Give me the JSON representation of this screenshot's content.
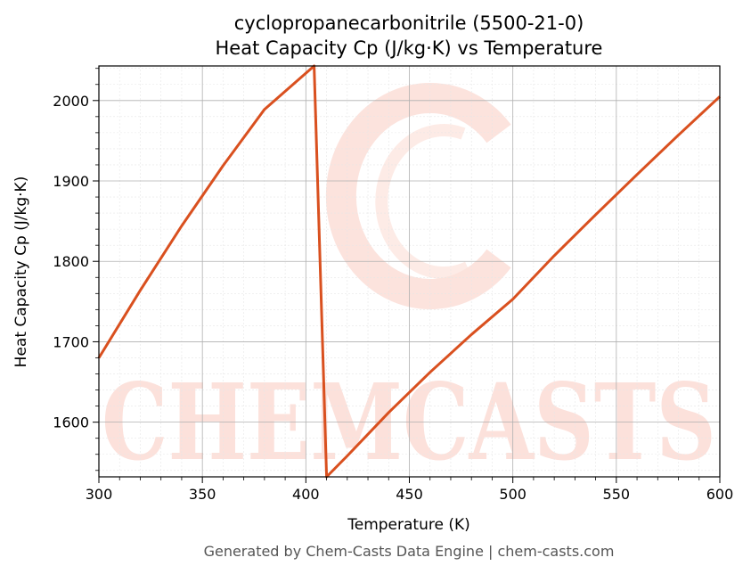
{
  "chart_data": {
    "type": "line",
    "title": "cyclopropanecarbonitrile (5500-21-0)",
    "subtitle": "Heat Capacity Cp (J/kg·K) vs Temperature",
    "xlabel": "Temperature (K)",
    "ylabel": "Heat Capacity Cp (J/kg·K)",
    "xlim": [
      300,
      600
    ],
    "ylim": [
      1532,
      2043
    ],
    "xticks": [
      300,
      350,
      400,
      450,
      500,
      550,
      600
    ],
    "yticks": [
      1600,
      1700,
      1800,
      1900,
      2000
    ],
    "grid": true,
    "series": [
      {
        "x": [
          300,
          320,
          340,
          360,
          380,
          404,
          410,
          420,
          440,
          460,
          480,
          500,
          520,
          540,
          560,
          580,
          600
        ],
        "y": [
          1680,
          1764,
          1844,
          1919,
          1989,
          2043,
          1532,
          1558,
          1612,
          1662,
          1709,
          1753,
          1807,
          1858,
          1908,
          1957,
          2005
        ]
      }
    ],
    "color": "#d9501f"
  },
  "watermark": "CHEMCASTS",
  "footer": "Generated by Chem-Casts Data Engine | chem-casts.com"
}
